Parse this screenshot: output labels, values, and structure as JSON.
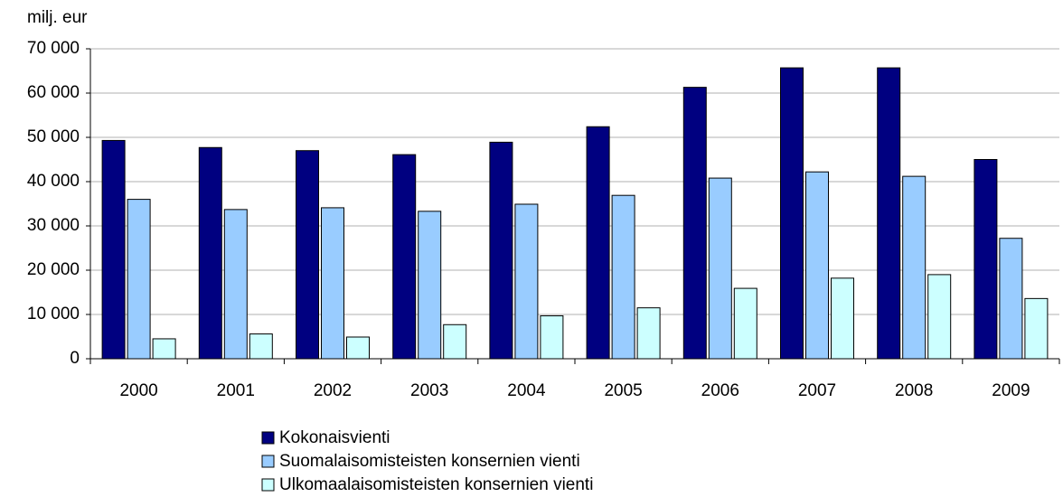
{
  "chart_data": {
    "type": "bar",
    "y_axis_label": "milj. eur",
    "categories": [
      "2000",
      "2001",
      "2002",
      "2003",
      "2004",
      "2005",
      "2006",
      "2007",
      "2008",
      "2009"
    ],
    "series": [
      {
        "name": "Kokonaisvienti",
        "color": "#000080",
        "values": [
          49300,
          47700,
          47000,
          46100,
          48900,
          52400,
          61300,
          65700,
          65700,
          45000
        ]
      },
      {
        "name": "Suomalaisomisteisten konsernien vienti",
        "color": "#99ccff",
        "values": [
          36000,
          33700,
          34100,
          33300,
          34900,
          36900,
          40800,
          42200,
          41200,
          27200
        ]
      },
      {
        "name": "Ulkomaalaisomisteisten konsernien vienti",
        "color": "#ccffff",
        "values": [
          4500,
          5600,
          4900,
          7700,
          9700,
          11500,
          15900,
          18200,
          19000,
          13600
        ]
      }
    ],
    "ylim": [
      0,
      70000
    ],
    "yticks": [
      0,
      {
        "value": 10000,
        "label": "10 000"
      },
      {
        "value": 20000,
        "label": "20 000"
      },
      {
        "value": 30000,
        "label": "30 000"
      },
      {
        "value": 40000,
        "label": "40 000"
      },
      {
        "value": 50000,
        "label": "50 000"
      },
      {
        "value": 60000,
        "label": "60 000"
      },
      {
        "value": 70000,
        "label": "70 000"
      }
    ],
    "grid": true
  }
}
